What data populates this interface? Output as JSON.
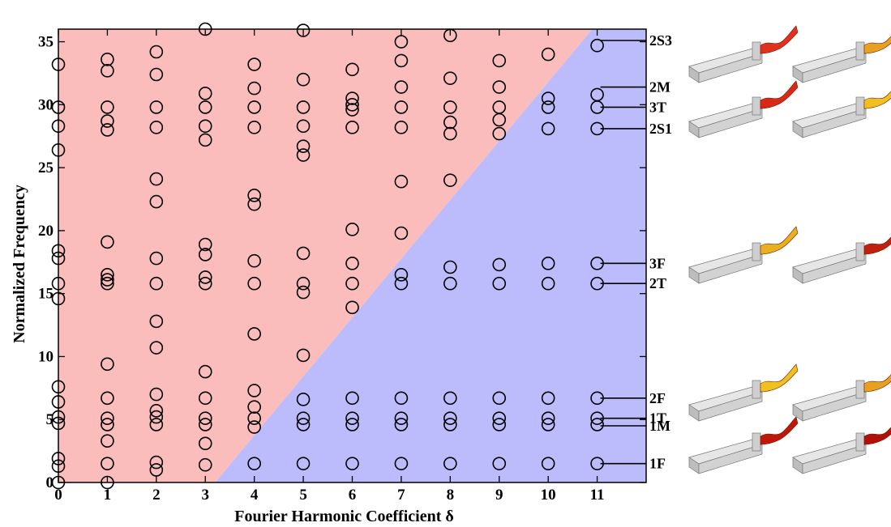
{
  "chart_data": {
    "type": "scatter",
    "xlabel": "Fourier Harmonic Coefficient δ",
    "ylabel": "Normalized Frequency",
    "xlim": [
      0,
      12
    ],
    "ylim": [
      0,
      36
    ],
    "xticks": [
      0,
      1,
      2,
      3,
      4,
      5,
      6,
      7,
      8,
      9,
      10,
      11
    ],
    "yticks": [
      0,
      5,
      10,
      15,
      20,
      25,
      30,
      35
    ],
    "grid": false,
    "region_colors": {
      "upper_left": "#fbbcbc",
      "lower_right": "#bcbcfc"
    },
    "region_boundary": [
      [
        3.2,
        0
      ],
      [
        10.9,
        36
      ]
    ],
    "marker": "open-circle",
    "series": [
      {
        "points": [
          [
            0,
            0
          ],
          [
            0,
            1.3
          ],
          [
            0,
            1.9
          ],
          [
            0,
            4.7
          ],
          [
            0,
            5.2
          ],
          [
            0,
            6.4
          ],
          [
            0,
            7.6
          ],
          [
            0,
            14.6
          ],
          [
            0,
            15.8
          ],
          [
            0,
            17.8
          ],
          [
            0,
            18.4
          ],
          [
            0,
            26.4
          ],
          [
            0,
            28.3
          ],
          [
            0,
            29.8
          ],
          [
            0,
            33.2
          ],
          [
            1,
            0
          ],
          [
            1,
            1.5
          ],
          [
            1,
            3.3
          ],
          [
            1,
            4.6
          ],
          [
            1,
            5.1
          ],
          [
            1,
            6.7
          ],
          [
            1,
            9.4
          ],
          [
            1,
            15.8
          ],
          [
            1,
            16.1
          ],
          [
            1,
            16.5
          ],
          [
            1,
            19.1
          ],
          [
            1,
            28.0
          ],
          [
            1,
            28.7
          ],
          [
            1,
            29.8
          ],
          [
            1,
            32.7
          ],
          [
            1,
            33.6
          ],
          [
            2,
            1.0
          ],
          [
            2,
            1.6
          ],
          [
            2,
            4.6
          ],
          [
            2,
            5.2
          ],
          [
            2,
            5.7
          ],
          [
            2,
            7.0
          ],
          [
            2,
            10.7
          ],
          [
            2,
            12.8
          ],
          [
            2,
            15.8
          ],
          [
            2,
            17.8
          ],
          [
            2,
            22.3
          ],
          [
            2,
            24.1
          ],
          [
            2,
            28.2
          ],
          [
            2,
            29.8
          ],
          [
            2,
            32.4
          ],
          [
            2,
            34.2
          ],
          [
            3,
            1.4
          ],
          [
            3,
            3.1
          ],
          [
            3,
            4.6
          ],
          [
            3,
            5.1
          ],
          [
            3,
            6.7
          ],
          [
            3,
            8.8
          ],
          [
            3,
            15.8
          ],
          [
            3,
            16.3
          ],
          [
            3,
            18.1
          ],
          [
            3,
            18.9
          ],
          [
            3,
            27.2
          ],
          [
            3,
            28.3
          ],
          [
            3,
            29.8
          ],
          [
            3,
            30.9
          ],
          [
            3,
            36.0
          ],
          [
            4,
            1.5
          ],
          [
            4,
            4.4
          ],
          [
            4,
            5.1
          ],
          [
            4,
            6.0
          ],
          [
            4,
            7.3
          ],
          [
            4,
            11.8
          ],
          [
            4,
            15.8
          ],
          [
            4,
            17.6
          ],
          [
            4,
            22.1
          ],
          [
            4,
            22.8
          ],
          [
            4,
            28.2
          ],
          [
            4,
            29.8
          ],
          [
            4,
            31.3
          ],
          [
            4,
            33.2
          ],
          [
            5,
            1.5
          ],
          [
            5,
            4.6
          ],
          [
            5,
            5.1
          ],
          [
            5,
            6.6
          ],
          [
            5,
            10.1
          ],
          [
            5,
            15.1
          ],
          [
            5,
            15.8
          ],
          [
            5,
            18.2
          ],
          [
            5,
            26.0
          ],
          [
            5,
            26.7
          ],
          [
            5,
            28.3
          ],
          [
            5,
            29.8
          ],
          [
            5,
            32.0
          ],
          [
            5,
            35.9
          ],
          [
            6,
            1.5
          ],
          [
            6,
            4.6
          ],
          [
            6,
            5.1
          ],
          [
            6,
            6.7
          ],
          [
            6,
            13.9
          ],
          [
            6,
            15.8
          ],
          [
            6,
            17.4
          ],
          [
            6,
            20.1
          ],
          [
            6,
            28.2
          ],
          [
            6,
            29.6
          ],
          [
            6,
            30.0
          ],
          [
            6,
            30.5
          ],
          [
            6,
            32.8
          ],
          [
            7,
            1.5
          ],
          [
            7,
            4.6
          ],
          [
            7,
            5.1
          ],
          [
            7,
            6.7
          ],
          [
            7,
            15.8
          ],
          [
            7,
            16.5
          ],
          [
            7,
            19.8
          ],
          [
            7,
            23.9
          ],
          [
            7,
            28.2
          ],
          [
            7,
            29.8
          ],
          [
            7,
            31.4
          ],
          [
            7,
            33.5
          ],
          [
            7,
            35.0
          ],
          [
            8,
            1.5
          ],
          [
            8,
            4.6
          ],
          [
            8,
            5.1
          ],
          [
            8,
            6.7
          ],
          [
            8,
            15.8
          ],
          [
            8,
            17.1
          ],
          [
            8,
            24.0
          ],
          [
            8,
            27.7
          ],
          [
            8,
            28.6
          ],
          [
            8,
            29.8
          ],
          [
            8,
            32.1
          ],
          [
            8,
            35.5
          ],
          [
            9,
            1.5
          ],
          [
            9,
            4.6
          ],
          [
            9,
            5.1
          ],
          [
            9,
            6.7
          ],
          [
            9,
            15.8
          ],
          [
            9,
            17.3
          ],
          [
            9,
            27.7
          ],
          [
            9,
            28.8
          ],
          [
            9,
            29.8
          ],
          [
            9,
            31.4
          ],
          [
            9,
            33.5
          ],
          [
            10,
            1.5
          ],
          [
            10,
            4.6
          ],
          [
            10,
            5.1
          ],
          [
            10,
            6.7
          ],
          [
            10,
            15.8
          ],
          [
            10,
            17.4
          ],
          [
            10,
            28.1
          ],
          [
            10,
            29.8
          ],
          [
            10,
            30.5
          ],
          [
            10,
            34.0
          ],
          [
            11,
            1.5
          ],
          [
            11,
            4.6
          ],
          [
            11,
            5.1
          ],
          [
            11,
            6.7
          ],
          [
            11,
            15.8
          ],
          [
            11,
            17.4
          ],
          [
            11,
            28.1
          ],
          [
            11,
            29.8
          ],
          [
            11,
            30.8
          ],
          [
            11,
            34.7
          ]
        ]
      }
    ],
    "annotations": [
      {
        "label": "2S3",
        "y": 35.1
      },
      {
        "label": "2M",
        "y": 31.4
      },
      {
        "label": "3T",
        "y": 29.8
      },
      {
        "label": "2S1",
        "y": 28.1
      },
      {
        "label": "3F",
        "y": 17.4
      },
      {
        "label": "2T",
        "y": 15.8
      },
      {
        "label": "2F",
        "y": 6.7
      },
      {
        "label": "1T",
        "y": 5.1
      },
      {
        "label": "1M",
        "y": 4.5
      },
      {
        "label": "1F",
        "y": 1.5
      }
    ]
  },
  "mode_shape_thumbnails": [
    {
      "icon": "blade-mode-shape-icon",
      "row": 1,
      "col": 1,
      "color": "#e0301e"
    },
    {
      "icon": "blade-mode-shape-icon",
      "row": 1,
      "col": 2,
      "color": "#e8a020"
    },
    {
      "icon": "blade-mode-shape-icon",
      "row": 2,
      "col": 1,
      "color": "#d82818"
    },
    {
      "icon": "blade-mode-shape-icon",
      "row": 2,
      "col": 2,
      "color": "#f0c020"
    },
    {
      "icon": "blade-mode-shape-icon",
      "row": 3,
      "col": 1,
      "color": "#e8b020"
    },
    {
      "icon": "blade-mode-shape-icon",
      "row": 3,
      "col": 2,
      "color": "#c02010"
    },
    {
      "icon": "blade-mode-shape-icon",
      "row": 4,
      "col": 1,
      "color": "#f0c020"
    },
    {
      "icon": "blade-mode-shape-icon",
      "row": 4,
      "col": 2,
      "color": "#e8a020"
    },
    {
      "icon": "blade-mode-shape-icon",
      "row": 5,
      "col": 1,
      "color": "#c01808"
    },
    {
      "icon": "blade-mode-shape-icon",
      "row": 5,
      "col": 2,
      "color": "#b01008"
    }
  ]
}
